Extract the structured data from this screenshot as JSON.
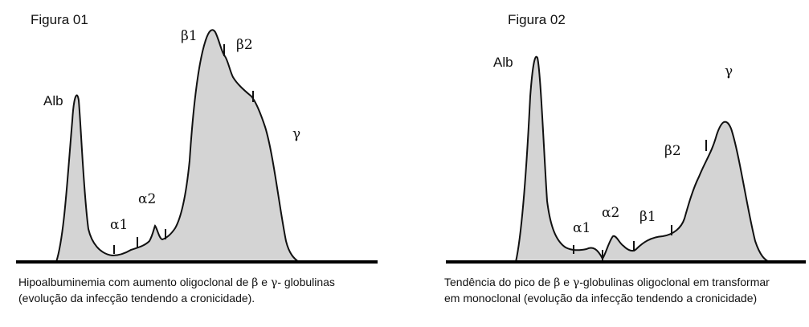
{
  "figures": [
    {
      "title": "Figura 01",
      "labels": {
        "alb": "Alb",
        "alpha1": "α1",
        "alpha2": "α2",
        "beta1": "β1",
        "beta2": "β2",
        "gamma": "γ"
      },
      "caption": {
        "line1_a": "Hipoalbuminemia com aumento oligoclonal de ",
        "beta": "β",
        "line1_b": " e ",
        "gamma": "γ",
        "line1_c": "- globulinas",
        "line2": "(evolução da infecção tendendo a cronicidade)."
      }
    },
    {
      "title": "Figura 02",
      "labels": {
        "alb": "Alb",
        "alpha1": "α1",
        "alpha2": "α2",
        "beta1": "β1",
        "beta2": "β2",
        "gamma": "γ"
      },
      "caption": {
        "line1_a": "Tendência do pico de ",
        "beta": "β",
        "line1_b": " e ",
        "gamma": "γ",
        "line1_c": "-globulinas oligoclonal em transformar",
        "line2": "em monoclonal (evolução da infecção tendendo a cronicidade)"
      }
    }
  ],
  "colors": {
    "curve_fill": "#d4d4d4",
    "curve_stroke": "#111111",
    "baseline": "#000000"
  }
}
